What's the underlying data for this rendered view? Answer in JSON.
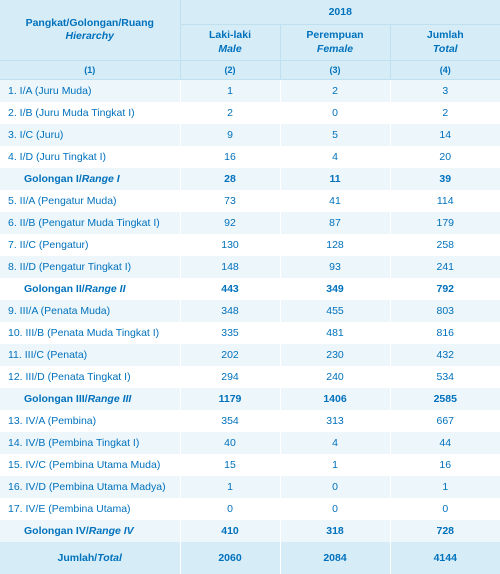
{
  "header": {
    "year": "2018",
    "left_top": "Pangkat/Golongan/Ruang",
    "left_bottom": "Hierarchy",
    "cols": [
      {
        "top": "Laki-laki",
        "bottom": "Male"
      },
      {
        "top": "Perempuan",
        "bottom": "Female"
      },
      {
        "top": "Jumlah",
        "bottom": "Total"
      }
    ],
    "nums": [
      "(1)",
      "(2)",
      "(3)",
      "(4)"
    ]
  },
  "rows": [
    {
      "type": "data",
      "label": "1. I/A (Juru Muda)",
      "vals": [
        "1",
        "2",
        "3"
      ]
    },
    {
      "type": "data",
      "label": "2. I/B (Juru Muda Tingkat I)",
      "vals": [
        "2",
        "0",
        "2"
      ]
    },
    {
      "type": "data",
      "label": "3. I/C (Juru)",
      "vals": [
        "9",
        "5",
        "14"
      ]
    },
    {
      "type": "data",
      "label": "4. I/D (Juru Tingkat I)",
      "vals": [
        "16",
        "4",
        "20"
      ]
    },
    {
      "type": "subtotal",
      "label_a": "Golongan I/",
      "label_b": "Range I",
      "vals": [
        "28",
        "11",
        "39"
      ]
    },
    {
      "type": "data",
      "label": "5. II/A (Pengatur Muda)",
      "vals": [
        "73",
        "41",
        "114"
      ]
    },
    {
      "type": "data",
      "label": "6. II/B (Pengatur Muda Tingkat I)",
      "vals": [
        "92",
        "87",
        "179"
      ]
    },
    {
      "type": "data",
      "label": "7. II/C (Pengatur)",
      "vals": [
        "130",
        "128",
        "258"
      ]
    },
    {
      "type": "data",
      "label": "8. II/D (Pengatur Tingkat I)",
      "vals": [
        "148",
        "93",
        "241"
      ]
    },
    {
      "type": "subtotal",
      "label_a": "Golongan II/",
      "label_b": "Range II",
      "vals": [
        "443",
        "349",
        "792"
      ]
    },
    {
      "type": "data",
      "label": "9. III/A (Penata Muda)",
      "vals": [
        "348",
        "455",
        "803"
      ]
    },
    {
      "type": "data",
      "label": "10. III/B (Penata Muda Tingkat I)",
      "vals": [
        "335",
        "481",
        "816"
      ]
    },
    {
      "type": "data",
      "label": "11. III/C (Penata)",
      "vals": [
        "202",
        "230",
        "432"
      ]
    },
    {
      "type": "data",
      "label": "12. III/D (Penata Tingkat I)",
      "vals": [
        "294",
        "240",
        "534"
      ]
    },
    {
      "type": "subtotal",
      "label_a": "Golongan III/",
      "label_b": "Range III",
      "vals": [
        "1179",
        "1406",
        "2585"
      ]
    },
    {
      "type": "data",
      "label": "13. IV/A (Pembina)",
      "vals": [
        "354",
        "313",
        "667"
      ]
    },
    {
      "type": "data",
      "label": "14. IV/B (Pembina Tingkat I)",
      "vals": [
        "40",
        "4",
        "44"
      ]
    },
    {
      "type": "data",
      "label": "15. IV/C (Pembina Utama Muda)",
      "vals": [
        "15",
        "1",
        "16"
      ]
    },
    {
      "type": "data",
      "label": "16. IV/D (Pembina Utama Madya)",
      "vals": [
        "1",
        "0",
        "1"
      ]
    },
    {
      "type": "data",
      "label": "17. IV/E (Pembina Utama)",
      "vals": [
        "0",
        "0",
        "0"
      ]
    },
    {
      "type": "subtotal",
      "label_a": "Golongan IV/",
      "label_b": "Range IV",
      "vals": [
        "410",
        "318",
        "728"
      ]
    }
  ],
  "total": {
    "label_a": "Jumlah/",
    "label_b": "Total",
    "vals": [
      "2060",
      "2084",
      "4144"
    ]
  },
  "colors": {
    "text": "#0071bc",
    "header_bg": "#d6edf7",
    "stripe_a": "#ecf6fb",
    "stripe_b": "#ffffff",
    "border": "#bfe0ef"
  }
}
